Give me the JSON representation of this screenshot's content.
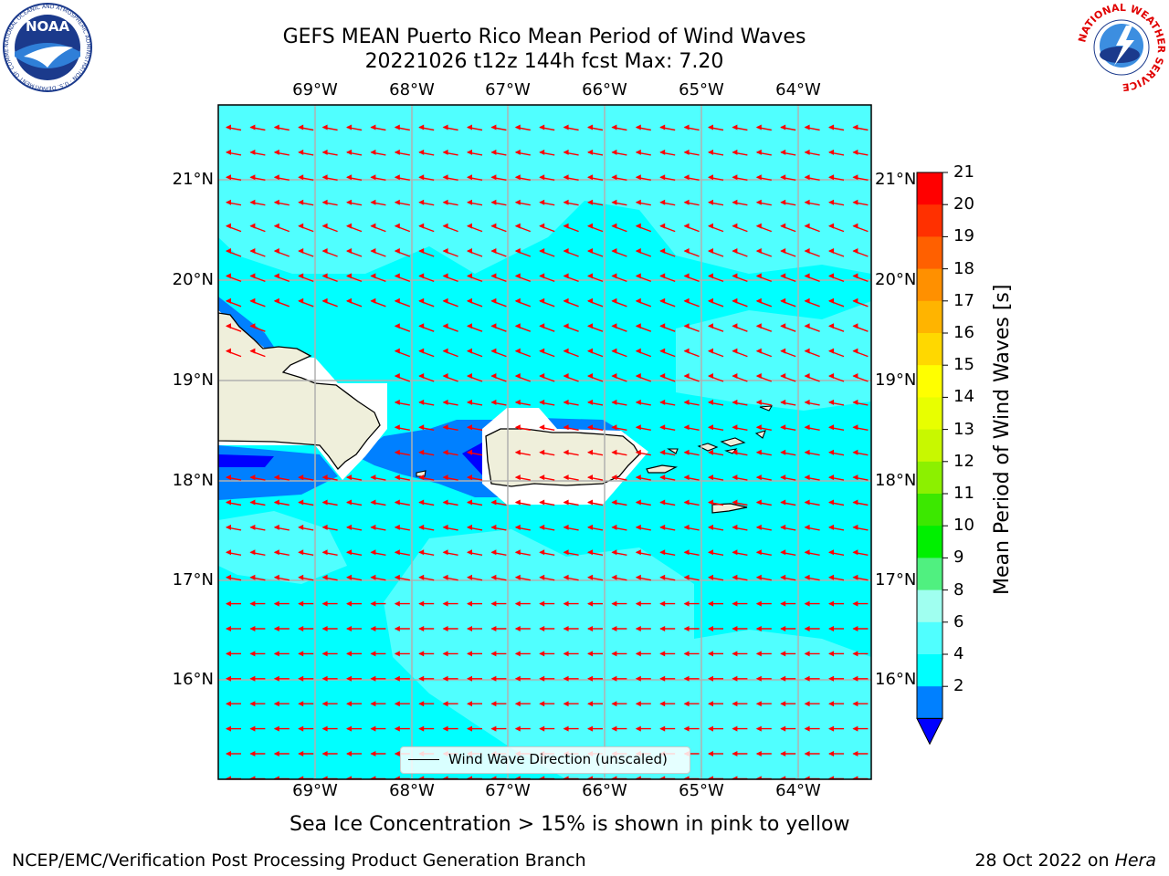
{
  "title": {
    "line1": "GEFS MEAN Puerto Rico Mean Period of Wind Waves",
    "line2": "20221026 t12z 144h fcst   Max: 7.20"
  },
  "map": {
    "lon_labels": [
      "69°W",
      "68°W",
      "67°W",
      "66°W",
      "65°W",
      "64°W"
    ],
    "lat_labels": [
      "21°N",
      "20°N",
      "19°N",
      "18°N",
      "17°N",
      "16°N"
    ],
    "extent": {
      "lon_min": -70.0,
      "lon_max": -63.25,
      "lat_min": 15.0,
      "lat_max": 21.75
    },
    "wind_arrow_color": "#ff0000",
    "ocean_color": "#00ffff",
    "land_color": "#efefdb",
    "legend_label": "Wind Wave Direction (unscaled)"
  },
  "colorbar": {
    "label": "Mean Period of Wind Waves [s]",
    "ticks": [
      "21",
      "20",
      "19",
      "18",
      "17",
      "16",
      "15",
      "14",
      "13",
      "12",
      "11",
      "10",
      "9",
      "8",
      "6",
      "4",
      "2"
    ],
    "colors": [
      "#ff0000",
      "#ff3000",
      "#ff6000",
      "#ff9000",
      "#ffb400",
      "#ffd800",
      "#ffff00",
      "#e8ff00",
      "#c8f800",
      "#8cf000",
      "#3ce800",
      "#00f000",
      "#50f080",
      "#a0fff0",
      "#50ffff",
      "#00ffff",
      "#0080ff"
    ],
    "extend_color": "#0000ff"
  },
  "subtitle": "Sea Ice Concentration > 15% is shown in pink to yellow",
  "footer": {
    "left": "NCEP/EMC/Verification Post Processing Product Generation Branch",
    "right_date": "28 Oct 2022 on ",
    "right_host": "Hera"
  },
  "logos": {
    "noaa_text": "NOAA",
    "noaa_ring": "NATIONAL OCEANIC AND ATMOSPHERIC ADMINISTRATION · U.S. DEPARTMENT OF COMMERCE",
    "nws_ring": "NATIONAL WEATHER SERVICE"
  }
}
